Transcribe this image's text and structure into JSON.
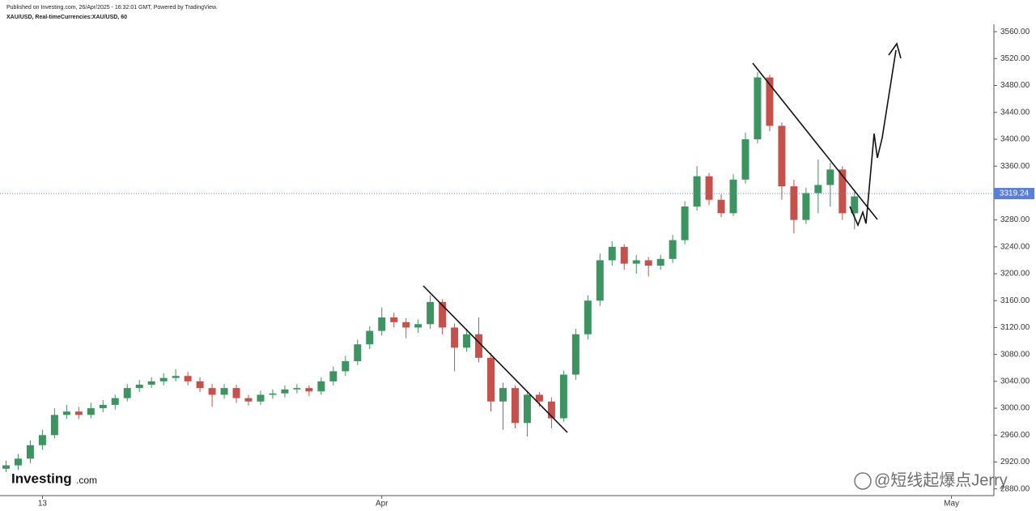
{
  "chart_data": {
    "type": "candlestick",
    "subtitle": "Published on Investing.com, 26/Apr/2025 - 16:32:01 GMT, Powered by TradingView.",
    "title": "XAU/USD, Real-timeCurrencies:XAU/USD, 60",
    "logo": "Investing",
    "logo_suffix": ".com",
    "watermark": "@短线起爆点Jerry",
    "up_color": "#3a9560",
    "down_color": "#c8504a",
    "last_price": 3319.24,
    "last_price_color": "#5a7fd6",
    "categories": [
      null,
      null,
      null,
      "13",
      null,
      null,
      null,
      null,
      null,
      null,
      null,
      null,
      null,
      null,
      null,
      null,
      null,
      null,
      null,
      null,
      null,
      null,
      null,
      null,
      null,
      null,
      null,
      null,
      null,
      null,
      null,
      "Apr",
      null,
      null,
      null,
      null,
      null,
      null,
      null,
      null,
      null,
      null,
      null,
      null,
      null,
      null,
      null,
      null,
      null,
      null,
      null,
      null,
      null,
      null,
      null,
      null,
      null,
      null,
      null,
      null,
      null,
      null,
      null,
      null,
      null,
      null,
      null,
      null,
      null,
      null,
      null,
      null,
      null,
      null,
      null,
      null,
      null,
      null,
      "May",
      null,
      null,
      null
    ],
    "series": {
      "open": [
        2910,
        2915,
        2925,
        2945,
        2960,
        2990,
        2995,
        2990,
        3000,
        3005,
        3015,
        3030,
        3035,
        3040,
        3045,
        3048,
        3040,
        3030,
        3020,
        3030,
        3015,
        3010,
        3020,
        3022,
        3028,
        3030,
        3025,
        3040,
        3055,
        3070,
        3095,
        3115,
        3135,
        3128,
        3120,
        3125,
        3158,
        3120,
        3090,
        3110,
        3075,
        3010,
        3030,
        2978,
        3020,
        3010,
        2985,
        3050,
        3110,
        3160,
        3220,
        3240,
        3215,
        3220,
        3212,
        3222,
        3250,
        3300,
        3345,
        3310,
        3290,
        3340,
        3400,
        3492,
        3420,
        3330,
        3280,
        3320,
        3332,
        3355,
        3290,
        null,
        null,
        null,
        null,
        null,
        null,
        null,
        null,
        null,
        null,
        null
      ],
      "high": [
        2922,
        2932,
        2952,
        2968,
        3000,
        3005,
        3002,
        3008,
        3012,
        3020,
        3036,
        3042,
        3046,
        3052,
        3058,
        3054,
        3046,
        3036,
        3036,
        3035,
        3020,
        3026,
        3028,
        3034,
        3036,
        3034,
        3046,
        3062,
        3078,
        3102,
        3122,
        3150,
        3142,
        3134,
        3132,
        3168,
        3162,
        3126,
        3118,
        3135,
        3082,
        3038,
        3034,
        3026,
        3024,
        3016,
        3056,
        3118,
        3168,
        3230,
        3248,
        3244,
        3228,
        3225,
        3228,
        3258,
        3308,
        3360,
        3350,
        3318,
        3348,
        3410,
        3500,
        3496,
        3425,
        3340,
        3328,
        3370,
        3365,
        3360,
        3322,
        null,
        null,
        null,
        null,
        null,
        null,
        null,
        null,
        null,
        null,
        null
      ],
      "low": [
        2905,
        2908,
        2918,
        2938,
        2955,
        2984,
        2984,
        2985,
        2994,
        2998,
        3010,
        3024,
        3030,
        3034,
        3040,
        3034,
        3024,
        3002,
        3014,
        3008,
        3004,
        3005,
        3014,
        3016,
        3022,
        3018,
        3020,
        3034,
        3048,
        3064,
        3088,
        3108,
        3120,
        3104,
        3112,
        3118,
        3110,
        3055,
        3084,
        3068,
        2995,
        2968,
        2970,
        2958,
        3002,
        2970,
        2980,
        3042,
        3102,
        3152,
        3212,
        3206,
        3200,
        3196,
        3206,
        3216,
        3244,
        3294,
        3302,
        3284,
        3286,
        3334,
        3394,
        3412,
        3310,
        3260,
        3274,
        3290,
        3300,
        3280,
        3266,
        null,
        null,
        null,
        null,
        null,
        null,
        null,
        null,
        null,
        null,
        null
      ],
      "close": [
        2915,
        2925,
        2945,
        2960,
        2990,
        2995,
        2990,
        3000,
        3005,
        3015,
        3030,
        3035,
        3040,
        3045,
        3048,
        3040,
        3030,
        3020,
        3030,
        3015,
        3010,
        3020,
        3022,
        3028,
        3030,
        3025,
        3040,
        3055,
        3070,
        3095,
        3115,
        3135,
        3128,
        3120,
        3125,
        3158,
        3120,
        3090,
        3110,
        3075,
        3010,
        3030,
        2978,
        3020,
        3010,
        2985,
        3050,
        3110,
        3160,
        3220,
        3240,
        3215,
        3220,
        3212,
        3222,
        3250,
        3300,
        3345,
        3310,
        3290,
        3340,
        3400,
        3492,
        3420,
        3330,
        3280,
        3320,
        3332,
        3355,
        3290,
        3315,
        null,
        null,
        null,
        null,
        null,
        null,
        null,
        null,
        null,
        null,
        null
      ]
    },
    "ylim": [
      2870,
      3571
    ],
    "yticks": [
      {
        "value": 3560,
        "label": "3560.00"
      },
      {
        "value": 3520,
        "label": "3520.00"
      },
      {
        "value": 3480,
        "label": "3480.00"
      },
      {
        "value": 3440,
        "label": "3440.00"
      },
      {
        "value": 3400,
        "label": "3400.00"
      },
      {
        "value": 3360,
        "label": "3360.00"
      },
      {
        "value": 3320,
        "label": "3320.00"
      },
      {
        "value": 3280,
        "label": "3280.00"
      },
      {
        "value": 3240,
        "label": "3240.00"
      },
      {
        "value": 3200,
        "label": "3200.00"
      },
      {
        "value": 3160,
        "label": "3160.00"
      },
      {
        "value": 3120,
        "label": "3120.00"
      },
      {
        "value": 3080,
        "label": "3080.00"
      },
      {
        "value": 3040,
        "label": "3040.00"
      },
      {
        "value": 3000,
        "label": "3000.00"
      },
      {
        "value": 2960,
        "label": "2960.00"
      },
      {
        "value": 2920,
        "label": "2920.00"
      },
      {
        "value": 2880,
        "label": "2880.00"
      }
    ]
  }
}
